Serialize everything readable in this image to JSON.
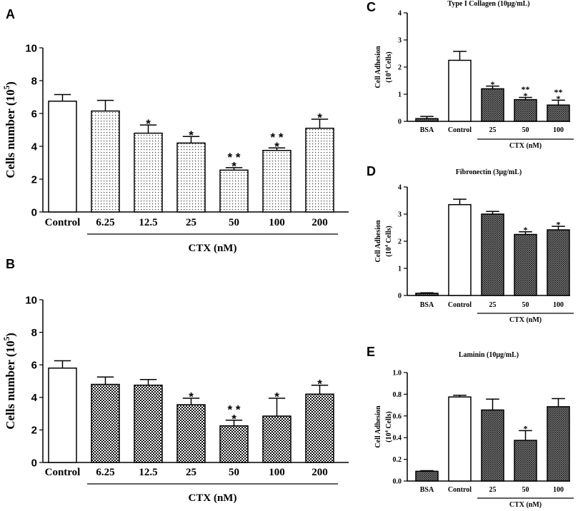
{
  "chart_data": [
    {
      "panel": "A",
      "type": "bar",
      "title": "",
      "ylabel": "Cells number (10",
      "ylabel_sup": "5",
      "ylabel_close": ")",
      "xlabel": "CTX (nM)",
      "ylim": [
        0,
        10
      ],
      "yticks": [
        0,
        2,
        4,
        6,
        8,
        10
      ],
      "categories": [
        "Control",
        "6.25",
        "12.5",
        "25",
        "50",
        "100",
        "200"
      ],
      "values": [
        6.75,
        6.15,
        4.8,
        4.2,
        2.55,
        3.75,
        5.1
      ],
      "errors": [
        0.4,
        0.65,
        0.5,
        0.4,
        0.15,
        0.15,
        0.55
      ],
      "significance": [
        [],
        [],
        [
          "*"
        ],
        [
          "*"
        ],
        [
          "* *",
          "*"
        ],
        [
          "* *",
          "*"
        ],
        [
          "*"
        ]
      ],
      "fills": [
        "white",
        "dots",
        "dots",
        "dots",
        "dots",
        "dots",
        "dots"
      ],
      "ctx_group_start": 1
    },
    {
      "panel": "B",
      "type": "bar",
      "title": "",
      "ylabel": "Cells number (10",
      "ylabel_sup": "5",
      "ylabel_close": ")",
      "xlabel": "CTX (nM)",
      "ylim": [
        0,
        10
      ],
      "yticks": [
        0,
        2,
        4,
        6,
        8,
        10
      ],
      "categories": [
        "Control",
        "6.25",
        "12.5",
        "25",
        "50",
        "100",
        "200"
      ],
      "values": [
        5.8,
        4.8,
        4.75,
        3.55,
        2.25,
        2.85,
        4.2
      ],
      "errors": [
        0.45,
        0.45,
        0.35,
        0.4,
        0.35,
        1.1,
        0.55
      ],
      "significance": [
        [],
        [],
        [],
        [
          "*"
        ],
        [
          "* *",
          "*"
        ],
        [
          "*"
        ],
        [
          "*"
        ]
      ],
      "fills": [
        "white",
        "check",
        "check",
        "check",
        "check",
        "check",
        "check"
      ],
      "ctx_group_start": 1
    },
    {
      "panel": "C",
      "type": "bar",
      "title": "Type I Collagen (10μg/mL)",
      "ylabel": "Cell Adhesion",
      "ylabel2": "(10",
      "ylabel2_sup": "4",
      "ylabel2_close": " Cells)",
      "xlabel": "CTX (nM)",
      "ylim": [
        0,
        4
      ],
      "yticks": [
        0,
        1,
        2,
        3,
        4
      ],
      "categories": [
        "BSA",
        "Control",
        "25",
        "50",
        "100"
      ],
      "values": [
        0.1,
        2.25,
        1.2,
        0.8,
        0.6
      ],
      "errors": [
        0.08,
        0.33,
        0.1,
        0.08,
        0.18
      ],
      "significance": [
        [],
        [],
        [
          "*"
        ],
        [
          "**",
          "*"
        ],
        [
          "**",
          "*"
        ]
      ],
      "fills": [
        "hatch",
        "white",
        "hatch",
        "hatch",
        "hatch"
      ],
      "ctx_group_start": 2
    },
    {
      "panel": "D",
      "type": "bar",
      "title": "Fibronectin (3μg/mL)",
      "ylabel": "Cell Adhesion",
      "ylabel2": "(10",
      "ylabel2_sup": "4",
      "ylabel2_close": " Cells)",
      "xlabel": "CTX (nM)",
      "ylim": [
        0,
        4
      ],
      "yticks": [
        0,
        1,
        2,
        3,
        4
      ],
      "categories": [
        "BSA",
        "Control",
        "25",
        "50",
        "100"
      ],
      "values": [
        0.08,
        3.35,
        3.0,
        2.25,
        2.42
      ],
      "errors": [
        0.02,
        0.2,
        0.1,
        0.1,
        0.13
      ],
      "significance": [
        [],
        [],
        [],
        [
          "*"
        ],
        [
          "*"
        ]
      ],
      "fills": [
        "hatch",
        "white",
        "hatch",
        "hatch",
        "hatch"
      ],
      "ctx_group_start": 2
    },
    {
      "panel": "E",
      "type": "bar",
      "title": "Laminin (10μg/mL)",
      "ylabel": "Cell Adhesion",
      "ylabel2": "(10",
      "ylabel2_sup": "4",
      "ylabel2_close": " Cells)",
      "xlabel": "CTX (nM)",
      "ylim": [
        0,
        1.0
      ],
      "yticks": [
        0.0,
        0.2,
        0.4,
        0.6,
        0.8,
        1.0
      ],
      "ytick_labels": [
        "0.0",
        "0.2",
        "0.4",
        "0.6",
        "0.8",
        "1.0"
      ],
      "categories": [
        "BSA",
        "Control",
        "25",
        "50",
        "100"
      ],
      "values": [
        0.09,
        0.775,
        0.655,
        0.375,
        0.685
      ],
      "errors": [
        0.005,
        0.015,
        0.1,
        0.09,
        0.075
      ],
      "significance": [
        [],
        [],
        [],
        [
          "*"
        ],
        []
      ],
      "fills": [
        "hatch",
        "white",
        "hatch",
        "hatch",
        "hatch"
      ],
      "ctx_group_start": 2
    }
  ]
}
